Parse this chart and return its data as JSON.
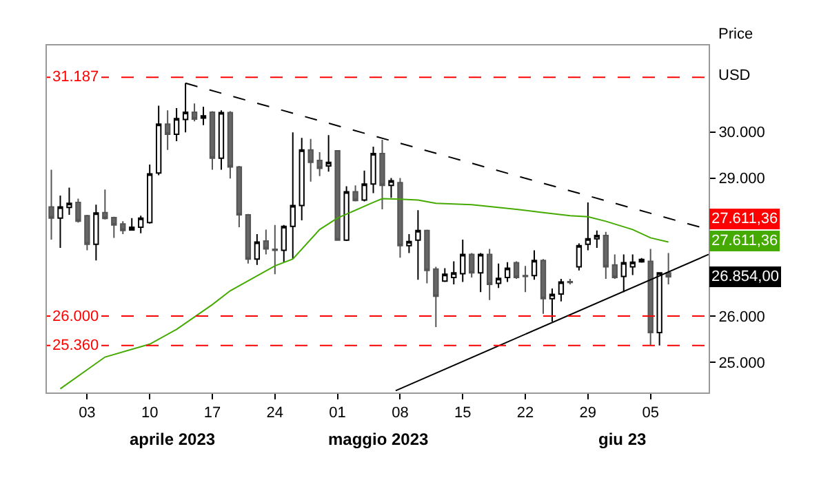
{
  "chart_data": {
    "type": "candlestick",
    "ylabel": "Price",
    "x": [
      "2023-03-30",
      "2023-03-31",
      "2023-04-01",
      "2023-04-02",
      "2023-04-03",
      "2023-04-04",
      "2023-04-05",
      "2023-04-06",
      "2023-04-07",
      "2023-04-08",
      "2023-04-09",
      "2023-04-10",
      "2023-04-11",
      "2023-04-12",
      "2023-04-13",
      "2023-04-14",
      "2023-04-15",
      "2023-04-16",
      "2023-04-17",
      "2023-04-18",
      "2023-04-19",
      "2023-04-20",
      "2023-04-21",
      "2023-04-22",
      "2023-04-23",
      "2023-04-24",
      "2023-04-25",
      "2023-04-26",
      "2023-04-27",
      "2023-04-28",
      "2023-04-29",
      "2023-04-30",
      "2023-05-01",
      "2023-05-02",
      "2023-05-03",
      "2023-05-04",
      "2023-05-05",
      "2023-05-06",
      "2023-05-07",
      "2023-05-08",
      "2023-05-09",
      "2023-05-10",
      "2023-05-11",
      "2023-05-12",
      "2023-05-13",
      "2023-05-14",
      "2023-05-15",
      "2023-05-16",
      "2023-05-17",
      "2023-05-18",
      "2023-05-19",
      "2023-05-20",
      "2023-05-21",
      "2023-05-22",
      "2023-05-23",
      "2023-05-24",
      "2023-05-25",
      "2023-05-26",
      "2023-05-27",
      "2023-05-28",
      "2023-05-29",
      "2023-05-30",
      "2023-05-31",
      "2023-06-01",
      "2023-06-02",
      "2023-06-03",
      "2023-06-04",
      "2023-06-05",
      "2023-06-06",
      "2023-06-07"
    ],
    "ohlc": [
      [
        28370,
        29180,
        27660,
        28130
      ],
      [
        28130,
        28620,
        27480,
        28370
      ],
      [
        28360,
        28790,
        28200,
        28450
      ],
      [
        28470,
        28550,
        28030,
        28060
      ],
      [
        28180,
        28200,
        27430,
        27560
      ],
      [
        27560,
        28420,
        27210,
        28240
      ],
      [
        28250,
        28750,
        28100,
        28120
      ],
      [
        28140,
        28160,
        27700,
        27980
      ],
      [
        28000,
        28060,
        27780,
        27860
      ],
      [
        27870,
        28130,
        27860,
        27930
      ],
      [
        27930,
        28180,
        27800,
        28130
      ],
      [
        28030,
        29290,
        28010,
        29090
      ],
      [
        29110,
        30570,
        29060,
        30170
      ],
      [
        30170,
        30470,
        29610,
        29950
      ],
      [
        29950,
        30520,
        29800,
        30290
      ],
      [
        30270,
        31060,
        29990,
        30430
      ],
      [
        30430,
        30620,
        30230,
        30280
      ],
      [
        30300,
        30550,
        30150,
        30350
      ],
      [
        30430,
        30450,
        29180,
        29430
      ],
      [
        29430,
        30470,
        29180,
        30420
      ],
      [
        30420,
        30450,
        28990,
        29240
      ],
      [
        29240,
        29260,
        27930,
        28200
      ],
      [
        28200,
        28220,
        27140,
        27240
      ],
      [
        27240,
        27780,
        27110,
        27610
      ],
      [
        27630,
        27880,
        27340,
        27460
      ],
      [
        27450,
        27980,
        26910,
        27430
      ],
      [
        27430,
        27980,
        27170,
        27950
      ],
      [
        27950,
        29990,
        27240,
        28400
      ],
      [
        28400,
        29870,
        28080,
        29610
      ],
      [
        29610,
        29850,
        28920,
        29340
      ],
      [
        29380,
        29560,
        29040,
        29210
      ],
      [
        29260,
        29930,
        29140,
        29340
      ],
      [
        29590,
        29600,
        27640,
        27650
      ],
      [
        27650,
        28820,
        27630,
        28700
      ],
      [
        28700,
        28840,
        28490,
        28510
      ],
      [
        28520,
        29160,
        28490,
        28870
      ],
      [
        28870,
        29680,
        28670,
        29530
      ],
      [
        29530,
        29830,
        28320,
        28840
      ],
      [
        28840,
        29000,
        28570,
        28940
      ],
      [
        28900,
        29000,
        27270,
        27530
      ],
      [
        27530,
        27780,
        27370,
        27620
      ],
      [
        27650,
        28300,
        26790,
        27860
      ],
      [
        27860,
        27880,
        26710,
        26990
      ],
      [
        27020,
        27070,
        25760,
        26430
      ],
      [
        26760,
        27040,
        26740,
        26910
      ],
      [
        26840,
        27190,
        26690,
        26940
      ],
      [
        26920,
        27660,
        26740,
        27340
      ],
      [
        27340,
        27370,
        26840,
        26940
      ],
      [
        26940,
        27370,
        26520,
        27340
      ],
      [
        27340,
        27460,
        26350,
        26690
      ],
      [
        26710,
        27140,
        26610,
        26820
      ],
      [
        26840,
        27170,
        26740,
        27040
      ],
      [
        27160,
        27190,
        26810,
        26840
      ],
      [
        26880,
        27090,
        26520,
        26860
      ],
      [
        26880,
        27430,
        26790,
        27210
      ],
      [
        27210,
        27240,
        26050,
        26380
      ],
      [
        26380,
        26600,
        25880,
        26470
      ],
      [
        26480,
        26810,
        26320,
        26740
      ],
      [
        26750,
        26810,
        26690,
        26730
      ],
      [
        27070,
        27580,
        26990,
        27530
      ],
      [
        27560,
        28470,
        27430,
        27680
      ],
      [
        27680,
        27860,
        27480,
        27750
      ],
      [
        27750,
        27830,
        26810,
        27070
      ],
      [
        27110,
        27340,
        26810,
        26840
      ],
      [
        26860,
        27340,
        26520,
        27160
      ],
      [
        27070,
        27340,
        26890,
        27170
      ],
      [
        27180,
        27260,
        27160,
        27230
      ],
      [
        27190,
        27460,
        25360,
        25640
      ],
      [
        25640,
        26940,
        25360,
        26940
      ],
      [
        26940,
        27370,
        26690,
        26854
      ]
    ],
    "series": [
      {
        "type": "line",
        "color": "#44aa00",
        "line_style": "solid",
        "x": [
          "2023-03-31",
          "2023-04-05",
          "2023-04-10",
          "2023-04-13",
          "2023-04-17",
          "2023-04-19",
          "2023-04-24",
          "2023-04-26",
          "2023-04-29",
          "2023-05-01",
          "2023-05-05",
          "2023-05-06",
          "2023-05-08",
          "2023-05-10",
          "2023-05-12",
          "2023-05-16",
          "2023-05-21",
          "2023-05-24",
          "2023-05-27",
          "2023-05-29",
          "2023-05-31",
          "2023-06-03",
          "2023-06-05",
          "2023-06-07"
        ],
        "values": [
          24420,
          25110,
          25390,
          25710,
          26250,
          26550,
          27090,
          27240,
          27880,
          28130,
          28470,
          28550,
          28540,
          28520,
          28450,
          28420,
          28320,
          28250,
          28180,
          28160,
          28060,
          27880,
          27700,
          27610
        ]
      },
      {
        "type": "line",
        "color": "#000000",
        "line_style": "dashed",
        "x": [
          "2023-04-14",
          "2023-06-11T12:00"
        ],
        "values": [
          31060,
          27880
        ]
      },
      {
        "type": "line",
        "color": "#000000",
        "line_style": "solid",
        "x": [
          "2023-05-07T12:00",
          "2023-06-11T12:00"
        ],
        "values": [
          24380,
          27340
        ]
      }
    ],
    "ref_lines": [
      {
        "axis": "y",
        "value": 31187,
        "label": "31.187",
        "color": "#ff0000",
        "line_style": "dashed"
      },
      {
        "axis": "y",
        "value": 26000,
        "label": "26.000",
        "color": "#ff0000",
        "line_style": "dashed"
      },
      {
        "axis": "y",
        "value": 25360,
        "label": "25.360",
        "color": "#ff0000",
        "line_style": "dashed"
      }
    ],
    "annotations": [
      "USD",
      "27.611,36",
      "27.611,36",
      "26.854,00",
      "aprile 2023",
      "maggio 2023",
      "giu 23"
    ],
    "xlim": [
      "2023-03-29T12:00",
      "2023-06-11T12:00"
    ],
    "xticks": [
      {
        "value": "2023-04-03",
        "label": "03"
      },
      {
        "value": "2023-04-10",
        "label": "10"
      },
      {
        "value": "2023-04-17",
        "label": "17"
      },
      {
        "value": "2023-04-24",
        "label": "24"
      },
      {
        "value": "2023-05-01",
        "label": "01"
      },
      {
        "value": "2023-05-08",
        "label": "08"
      },
      {
        "value": "2023-05-15",
        "label": "15"
      },
      {
        "value": "2023-05-22",
        "label": "22"
      },
      {
        "value": "2023-05-29",
        "label": "29"
      },
      {
        "value": "2023-06-05",
        "label": "05"
      }
    ],
    "ylim": [
      24340,
      31880
    ],
    "yticks": [
      {
        "value": 25000,
        "label": "25.000"
      },
      {
        "value": 26000,
        "label": "26.000"
      },
      {
        "value": 29000,
        "label": "29.000"
      },
      {
        "value": 30000,
        "label": "30.000"
      }
    ]
  }
}
